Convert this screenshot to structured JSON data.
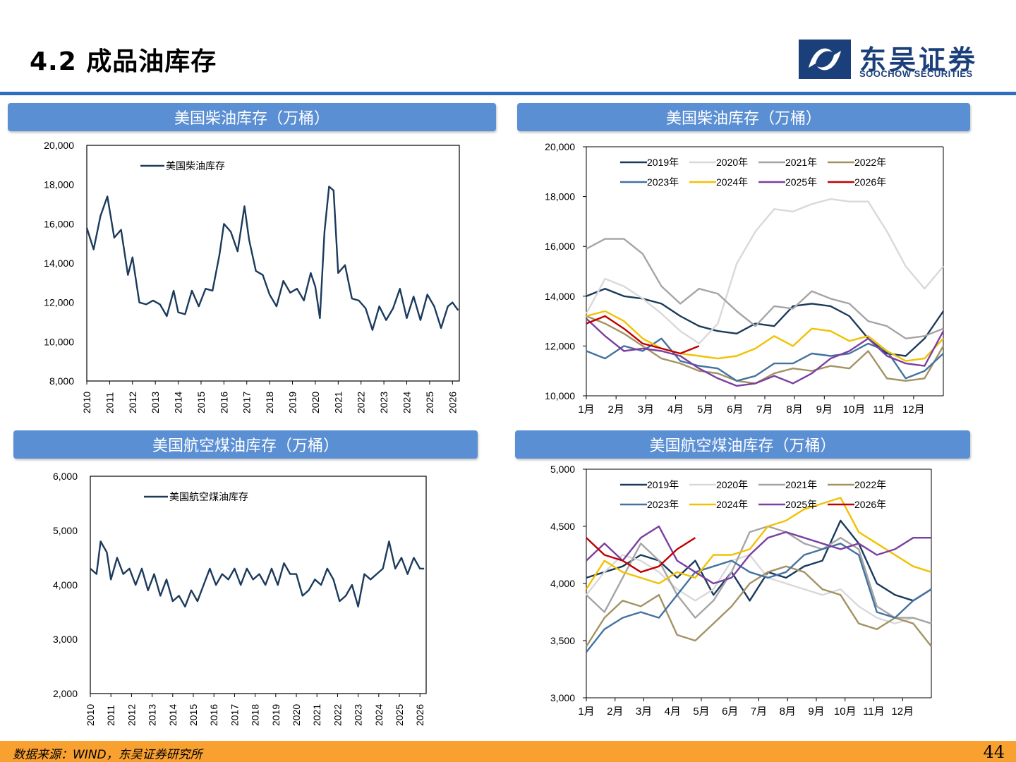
{
  "page": {
    "title": "4.2 成品油库存",
    "logo_cn": "东吴证券",
    "logo_en": "SOOCHOW SECURITIES",
    "source": "数据来源：WIND，东吴证券研究所",
    "page_number": "44",
    "colors": {
      "accent_rule": "#2f6ebd",
      "panel_header": "#5b8fd4",
      "footer": "#f9a130",
      "logo": "#1b3f7a"
    }
  },
  "panels": [
    {
      "header": "美国柴油库存（万桶）"
    },
    {
      "header": "美国柴油库存（万桶）"
    },
    {
      "header": "美国航空煤油库存（万桶）"
    },
    {
      "header": "美国航空煤油库存（万桶）"
    }
  ],
  "chart_data": [
    {
      "type": "line",
      "title": "",
      "ylim": [
        8000,
        20000
      ],
      "yticks": [
        "8,000",
        "10,000",
        "12,000",
        "14,000",
        "16,000",
        "18,000",
        "20,000"
      ],
      "xticks": [
        "2010",
        "2011",
        "2012",
        "2013",
        "2014",
        "2015",
        "2016",
        "2017",
        "2018",
        "2019",
        "2020",
        "2021",
        "2022",
        "2023",
        "2024",
        "2025",
        "2026"
      ],
      "legend_position": "top-left",
      "series": [
        {
          "name": "美国柴油库存",
          "color": "#1b3a5c",
          "x": [
            2010.0,
            2010.3,
            2010.6,
            2010.9,
            2011.2,
            2011.5,
            2011.8,
            2012.0,
            2012.3,
            2012.6,
            2012.9,
            2013.2,
            2013.5,
            2013.8,
            2014.0,
            2014.3,
            2014.6,
            2014.9,
            2015.2,
            2015.5,
            2015.8,
            2016.0,
            2016.3,
            2016.6,
            2016.9,
            2017.1,
            2017.4,
            2017.7,
            2018.0,
            2018.3,
            2018.6,
            2018.9,
            2019.2,
            2019.5,
            2019.8,
            2020.0,
            2020.2,
            2020.4,
            2020.6,
            2020.8,
            2021.0,
            2021.3,
            2021.6,
            2021.9,
            2022.2,
            2022.5,
            2022.8,
            2023.1,
            2023.4,
            2023.7,
            2024.0,
            2024.3,
            2024.6,
            2024.9,
            2025.2,
            2025.5,
            2025.8,
            2026.0,
            2026.25
          ],
          "values": [
            15800,
            14700,
            16400,
            17400,
            15300,
            15700,
            13400,
            14300,
            12000,
            11900,
            12100,
            11900,
            11300,
            12600,
            11500,
            11400,
            12600,
            11800,
            12700,
            12600,
            14400,
            16000,
            15600,
            14600,
            16900,
            15200,
            13600,
            13400,
            12400,
            11800,
            13100,
            12500,
            12700,
            12100,
            13500,
            12800,
            11200,
            15600,
            17900,
            17700,
            13500,
            13900,
            12200,
            12100,
            11700,
            10600,
            11800,
            11100,
            11700,
            12700,
            11200,
            12300,
            11100,
            12400,
            11800,
            10700,
            11800,
            12000,
            11600
          ]
        }
      ]
    },
    {
      "type": "line",
      "title": "",
      "ylim": [
        10000,
        20000
      ],
      "yticks": [
        "10,000",
        "12,000",
        "14,000",
        "16,000",
        "18,000",
        "20,000"
      ],
      "xticks": [
        "1月",
        "2月",
        "3月",
        "4月",
        "5月",
        "6月",
        "7月",
        "8月",
        "9月",
        "10月",
        "11月",
        "12月"
      ],
      "legend_position": "top",
      "series": [
        {
          "name": "2019年",
          "color": "#1b3a5c",
          "values": [
            14000,
            14300,
            14000,
            13900,
            13700,
            13200,
            12800,
            12600,
            12500,
            12900,
            12800,
            13600,
            13700,
            13600,
            13200,
            12300,
            11700,
            11600,
            12300,
            13400
          ]
        },
        {
          "name": "2020年",
          "color": "#d9d9d9",
          "values": [
            13300,
            14700,
            14400,
            13900,
            13300,
            12600,
            12100,
            12900,
            15300,
            16600,
            17500,
            17400,
            17700,
            17900,
            17800,
            17800,
            16600,
            15200,
            14300,
            15200
          ]
        },
        {
          "name": "2021年",
          "color": "#a5a5a5",
          "values": [
            15900,
            16300,
            16300,
            15700,
            14400,
            13700,
            14300,
            14100,
            13400,
            12800,
            13600,
            13500,
            14200,
            13900,
            13700,
            13000,
            12800,
            12300,
            12400,
            12700
          ]
        },
        {
          "name": "2022年",
          "color": "#a39264",
          "values": [
            13200,
            12900,
            12500,
            12000,
            11500,
            11300,
            11000,
            10900,
            10600,
            10500,
            10900,
            11100,
            11000,
            11200,
            11100,
            11800,
            10700,
            10600,
            10700,
            12000
          ]
        },
        {
          "name": "2023年",
          "color": "#44729e",
          "values": [
            11800,
            11500,
            12000,
            11800,
            12300,
            11400,
            11200,
            11100,
            10600,
            10800,
            11300,
            11300,
            11700,
            11600,
            11700,
            12100,
            11800,
            10700,
            11000,
            11700
          ]
        },
        {
          "name": "2024年",
          "color": "#f2c100",
          "values": [
            13200,
            13400,
            13000,
            12300,
            11900,
            11700,
            11600,
            11500,
            11600,
            11900,
            12400,
            12000,
            12700,
            12600,
            12200,
            12400,
            11800,
            11400,
            11500,
            12300
          ]
        },
        {
          "name": "2025年",
          "color": "#7b3fa0",
          "values": [
            13100,
            12400,
            11800,
            11900,
            11800,
            11600,
            11100,
            10700,
            10400,
            10500,
            10800,
            10500,
            10900,
            11500,
            11800,
            12300,
            11600,
            11300,
            11200,
            12600
          ]
        },
        {
          "name": "2026年",
          "color": "#c00000",
          "values": [
            12900,
            13200,
            12700,
            12100,
            11900,
            11700,
            12000
          ]
        }
      ]
    },
    {
      "type": "line",
      "title": "",
      "ylim": [
        2000,
        6000
      ],
      "yticks": [
        "2,000",
        "3,000",
        "4,000",
        "5,000",
        "6,000"
      ],
      "xticks": [
        "2010",
        "2011",
        "2012",
        "2013",
        "2014",
        "2015",
        "2016",
        "2017",
        "2018",
        "2019",
        "2020",
        "2021",
        "2022",
        "2023",
        "2024",
        "2025",
        "2026"
      ],
      "legend_position": "top-left",
      "series": [
        {
          "name": "美国航空煤油库存",
          "color": "#1b3a5c",
          "x": [
            2010.0,
            2010.3,
            2010.5,
            2010.8,
            2011.0,
            2011.3,
            2011.6,
            2011.9,
            2012.2,
            2012.5,
            2012.8,
            2013.1,
            2013.4,
            2013.7,
            2014.0,
            2014.3,
            2014.6,
            2014.9,
            2015.2,
            2015.5,
            2015.8,
            2016.1,
            2016.4,
            2016.7,
            2017.0,
            2017.3,
            2017.6,
            2017.9,
            2018.2,
            2018.5,
            2018.8,
            2019.1,
            2019.4,
            2019.7,
            2020.0,
            2020.3,
            2020.6,
            2020.9,
            2021.2,
            2021.5,
            2021.8,
            2022.1,
            2022.4,
            2022.7,
            2023.0,
            2023.3,
            2023.6,
            2023.9,
            2024.2,
            2024.5,
            2024.8,
            2025.1,
            2025.4,
            2025.7,
            2026.0,
            2026.2
          ],
          "values": [
            4300,
            4200,
            4800,
            4600,
            4100,
            4500,
            4200,
            4300,
            4000,
            4300,
            3900,
            4200,
            3800,
            4100,
            3700,
            3800,
            3600,
            3900,
            3700,
            4000,
            4300,
            4000,
            4200,
            4100,
            4300,
            4000,
            4300,
            4100,
            4200,
            4000,
            4300,
            4000,
            4400,
            4200,
            4200,
            3800,
            3900,
            4100,
            4000,
            4300,
            4100,
            3700,
            3800,
            4000,
            3600,
            4200,
            4100,
            4200,
            4300,
            4800,
            4300,
            4500,
            4200,
            4500,
            4300,
            4300
          ]
        }
      ]
    },
    {
      "type": "line",
      "title": "",
      "ylim": [
        3000,
        5000
      ],
      "yticks": [
        "3,000",
        "3,500",
        "4,000",
        "4,500",
        "5,000"
      ],
      "xticks": [
        "1月",
        "2月",
        "3月",
        "4月",
        "5月",
        "6月",
        "7月",
        "8月",
        "9月",
        "10月",
        "11月",
        "12月"
      ],
      "legend_position": "top",
      "series": [
        {
          "name": "2019年",
          "color": "#1b3a5c",
          "values": [
            4050,
            4100,
            4150,
            4250,
            4200,
            4050,
            4200,
            3900,
            4100,
            3850,
            4100,
            4050,
            4150,
            4200,
            4550,
            4350,
            4000,
            3900,
            3850,
            3950
          ]
        },
        {
          "name": "2020年",
          "color": "#d9d9d9",
          "values": [
            3900,
            4100,
            4250,
            4200,
            4100,
            3950,
            3850,
            3950,
            4200,
            4250,
            4050,
            4000,
            3950,
            3900,
            3950,
            3800,
            3700,
            3650,
            3700,
            3650
          ]
        },
        {
          "name": "2021年",
          "color": "#a5a5a5",
          "values": [
            3900,
            3750,
            4050,
            4350,
            4200,
            3900,
            3700,
            3850,
            4100,
            4450,
            4500,
            4450,
            4350,
            4300,
            4400,
            4300,
            3800,
            3700,
            3700,
            3650
          ]
        },
        {
          "name": "2022年",
          "color": "#a39264",
          "values": [
            3450,
            3700,
            3850,
            3800,
            3900,
            3550,
            3500,
            3650,
            3800,
            4000,
            4100,
            4150,
            4100,
            3950,
            3900,
            3650,
            3600,
            3700,
            3650,
            3450
          ]
        },
        {
          "name": "2023年",
          "color": "#44729e",
          "values": [
            3400,
            3600,
            3700,
            3750,
            3700,
            3900,
            4100,
            4150,
            4200,
            4100,
            4050,
            4100,
            4250,
            4300,
            4350,
            4250,
            3750,
            3700,
            3850,
            3950
          ]
        },
        {
          "name": "2024年",
          "color": "#f2c100",
          "values": [
            3950,
            4200,
            4100,
            4050,
            4000,
            4100,
            4050,
            4250,
            4250,
            4300,
            4500,
            4550,
            4650,
            4700,
            4750,
            4450,
            4350,
            4250,
            4150,
            4100
          ]
        },
        {
          "name": "2025年",
          "color": "#7b3fa0",
          "values": [
            4200,
            4350,
            4200,
            4400,
            4500,
            4200,
            4100,
            4000,
            4050,
            4250,
            4400,
            4450,
            4400,
            4350,
            4300,
            4350,
            4250,
            4300,
            4400,
            4400
          ]
        },
        {
          "name": "2026年",
          "color": "#c00000",
          "values": [
            4400,
            4250,
            4200,
            4100,
            4150,
            4300,
            4400
          ]
        }
      ]
    }
  ]
}
